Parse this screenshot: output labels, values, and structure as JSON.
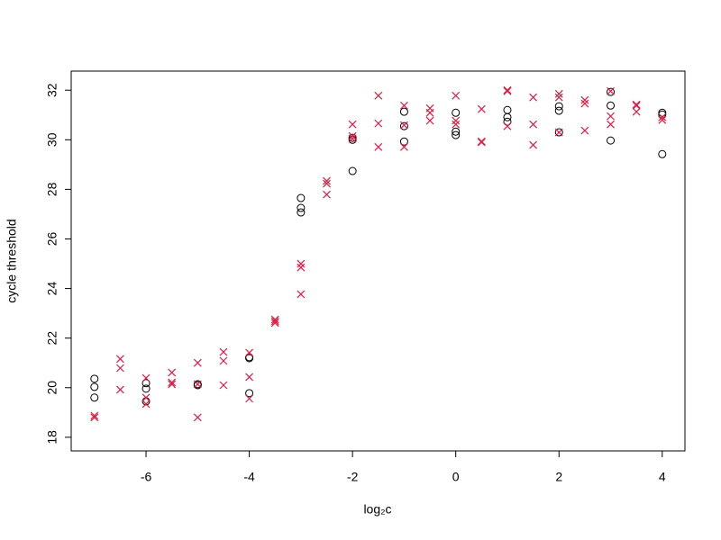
{
  "chart_data": {
    "type": "scatter",
    "xlabel": "log₂c",
    "ylabel": "cycle threshold",
    "xlim": [
      -7.45,
      4.44
    ],
    "ylim": [
      17.45,
      32.77
    ],
    "xticks": [
      -6,
      -4,
      -2,
      0,
      2,
      4
    ],
    "yticks": [
      18,
      20,
      22,
      24,
      26,
      28,
      30,
      32
    ],
    "series": [
      {
        "color": "#000000",
        "marker": "circle",
        "x": [
          -7,
          -7,
          -7,
          -6,
          -6,
          -6,
          -5,
          -5,
          -4,
          -4,
          -4,
          -3,
          -3,
          -3,
          -2,
          -2,
          -2,
          -1,
          -1,
          -1,
          0,
          0,
          0,
          1,
          1,
          1,
          2,
          2,
          2,
          3,
          3,
          3,
          4,
          4,
          4
        ],
        "values": [
          20.36,
          20.03,
          19.6,
          20.18,
          19.96,
          19.45,
          20.14,
          20.1,
          21.23,
          21.19,
          19.78,
          27.65,
          27.25,
          27.07,
          30.08,
          30.0,
          28.74,
          31.13,
          30.55,
          29.93,
          31.09,
          30.33,
          30.19,
          31.2,
          30.91,
          30.73,
          31.35,
          31.17,
          30.3,
          31.93,
          31.38,
          29.97,
          31.09,
          31.02,
          29.42
        ]
      },
      {
        "color": "#df1c44",
        "marker": "cross",
        "x": [
          -7,
          -7,
          -6.5,
          -6.5,
          -6.5,
          -6,
          -6,
          -6,
          -5.5,
          -5.5,
          -5.5,
          -5,
          -5,
          -5,
          -4.5,
          -4.5,
          -4.5,
          -4,
          -4,
          -4,
          -3.5,
          -3.5,
          -3.5,
          -3,
          -3,
          -3,
          -2.5,
          -2.5,
          -2.5,
          -2,
          -2,
          -2,
          -1.5,
          -1.5,
          -1.5,
          -1,
          -1,
          -1,
          -0.5,
          -0.5,
          -0.5,
          0,
          0,
          0,
          0.5,
          0.5,
          0.5,
          1,
          1,
          1,
          1.5,
          1.5,
          1.5,
          2,
          2,
          2,
          2.5,
          2.5,
          2.5,
          3,
          3,
          3,
          3.5,
          3.5,
          3.5,
          4,
          4
        ],
        "values": [
          18.87,
          18.8,
          21.16,
          20.79,
          19.92,
          20.39,
          19.6,
          19.34,
          20.61,
          20.21,
          20.14,
          21.0,
          20.14,
          18.8,
          21.44,
          21.08,
          20.1,
          21.41,
          20.43,
          19.56,
          22.75,
          22.68,
          22.61,
          25.0,
          24.85,
          23.77,
          28.34,
          28.23,
          27.79,
          30.62,
          30.15,
          30.04,
          31.78,
          30.66,
          29.71,
          31.38,
          30.59,
          29.71,
          31.27,
          31.09,
          30.77,
          31.78,
          30.77,
          30.62,
          31.24,
          29.93,
          29.9,
          32.0,
          31.96,
          30.55,
          31.71,
          30.62,
          29.79,
          31.85,
          31.71,
          30.3,
          31.6,
          31.46,
          30.37,
          31.96,
          30.95,
          30.62,
          31.42,
          31.38,
          31.13,
          30.91,
          30.8
        ]
      }
    ]
  }
}
